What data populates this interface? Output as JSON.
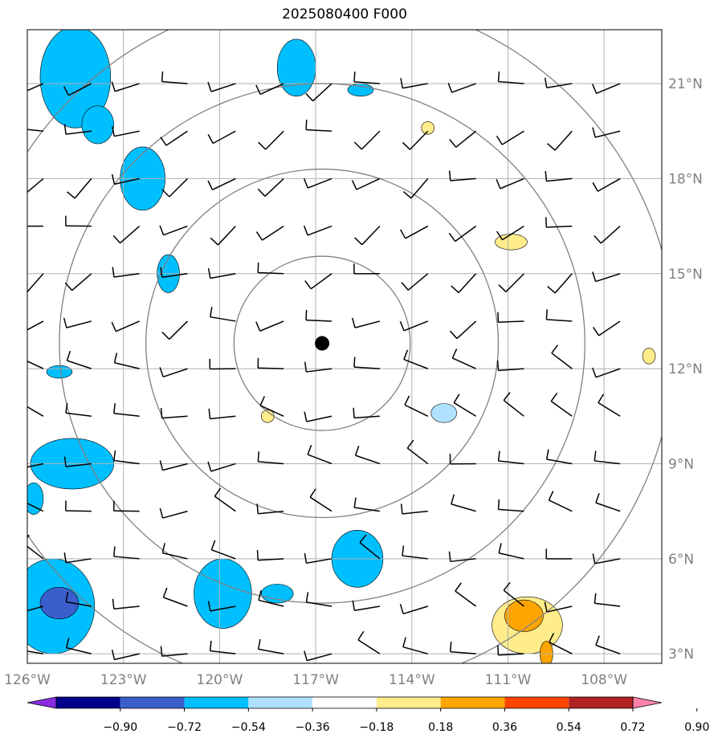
{
  "title": "2025080400 F000",
  "map": {
    "lon_range": [
      -126,
      -106.2
    ],
    "lat_range": [
      2.7,
      22.7
    ],
    "lon_ticks": [
      {
        "v": -126,
        "label": "126°W"
      },
      {
        "v": -123,
        "label": "123°W"
      },
      {
        "v": -120,
        "label": "120°W"
      },
      {
        "v": -117,
        "label": "117°W"
      },
      {
        "v": -114,
        "label": "114°W"
      },
      {
        "v": -111,
        "label": "111°W"
      },
      {
        "v": -108,
        "label": "108°W"
      }
    ],
    "lat_ticks": [
      {
        "v": 3,
        "label": "3°N"
      },
      {
        "v": 6,
        "label": "6°N"
      },
      {
        "v": 9,
        "label": "9°N"
      },
      {
        "v": 12,
        "label": "12°N"
      },
      {
        "v": 15,
        "label": "15°N"
      },
      {
        "v": 18,
        "label": "18°N"
      },
      {
        "v": 21,
        "label": "21°N"
      }
    ],
    "center": {
      "lon": -116.8,
      "lat": 12.8
    },
    "range_rings_deg": [
      2.75,
      5.5,
      8.2,
      11.0
    ]
  },
  "colorbar": {
    "levels": [
      "−0.90",
      "−0.72",
      "−0.54",
      "−0.36",
      "−0.18",
      "0.18",
      "0.36",
      "0.54",
      "0.72",
      "0.90"
    ],
    "colors": [
      "#8a2be2",
      "#00008b",
      "#3a5fcd",
      "#00bfff",
      "#b0e2ff",
      "#ffffff",
      "#ffec8b",
      "#ffa500",
      "#ff4500",
      "#b22222",
      "#ff82ab"
    ]
  },
  "shading": [
    {
      "lon": -124.5,
      "lat": 21.2,
      "rx": 1.1,
      "ry": 1.6,
      "color": "#00bfff"
    },
    {
      "lon": -123.8,
      "lat": 19.7,
      "rx": 0.5,
      "ry": 0.6,
      "color": "#00bfff"
    },
    {
      "lon": -122.4,
      "lat": 18.0,
      "rx": 0.7,
      "ry": 1.0,
      "color": "#00bfff"
    },
    {
      "lon": -117.6,
      "lat": 21.5,
      "rx": 0.6,
      "ry": 0.9,
      "color": "#00bfff"
    },
    {
      "lon": -115.6,
      "lat": 20.8,
      "rx": 0.4,
      "ry": 0.2,
      "color": "#00bfff"
    },
    {
      "lon": -121.6,
      "lat": 15.0,
      "rx": 0.35,
      "ry": 0.6,
      "color": "#00bfff"
    },
    {
      "lon": -125.0,
      "lat": 11.9,
      "rx": 0.4,
      "ry": 0.2,
      "color": "#00bfff"
    },
    {
      "lon": -124.6,
      "lat": 9.0,
      "rx": 1.3,
      "ry": 0.8,
      "color": "#00bfff"
    },
    {
      "lon": -125.8,
      "lat": 7.9,
      "rx": 0.3,
      "ry": 0.5,
      "color": "#00bfff"
    },
    {
      "lon": -115.7,
      "lat": 6.0,
      "rx": 0.8,
      "ry": 0.9,
      "color": "#00bfff"
    },
    {
      "lon": -119.9,
      "lat": 4.9,
      "rx": 0.9,
      "ry": 1.1,
      "color": "#00bfff"
    },
    {
      "lon": -118.2,
      "lat": 4.9,
      "rx": 0.5,
      "ry": 0.3,
      "color": "#00bfff"
    },
    {
      "lon": -125.2,
      "lat": 4.5,
      "rx": 1.3,
      "ry": 1.5,
      "color": "#00bfff"
    },
    {
      "lon": -125.0,
      "lat": 4.6,
      "rx": 0.6,
      "ry": 0.5,
      "color": "#3a5fcd"
    },
    {
      "lon": -113.0,
      "lat": 10.6,
      "rx": 0.4,
      "ry": 0.3,
      "color": "#b0e2ff"
    },
    {
      "lon": -113.5,
      "lat": 19.6,
      "rx": 0.2,
      "ry": 0.2,
      "color": "#ffec8b"
    },
    {
      "lon": -110.9,
      "lat": 16.0,
      "rx": 0.5,
      "ry": 0.25,
      "color": "#ffec8b"
    },
    {
      "lon": -118.5,
      "lat": 10.5,
      "rx": 0.2,
      "ry": 0.2,
      "color": "#ffec8b"
    },
    {
      "lon": -106.6,
      "lat": 12.4,
      "rx": 0.2,
      "ry": 0.25,
      "color": "#ffec8b"
    },
    {
      "lon": -110.4,
      "lat": 3.9,
      "rx": 1.1,
      "ry": 0.9,
      "color": "#ffec8b"
    },
    {
      "lon": -110.5,
      "lat": 4.2,
      "rx": 0.6,
      "ry": 0.5,
      "color": "#ffa500"
    },
    {
      "lon": -109.8,
      "lat": 3.0,
      "rx": 0.2,
      "ry": 0.4,
      "color": "#ffa500"
    }
  ]
}
